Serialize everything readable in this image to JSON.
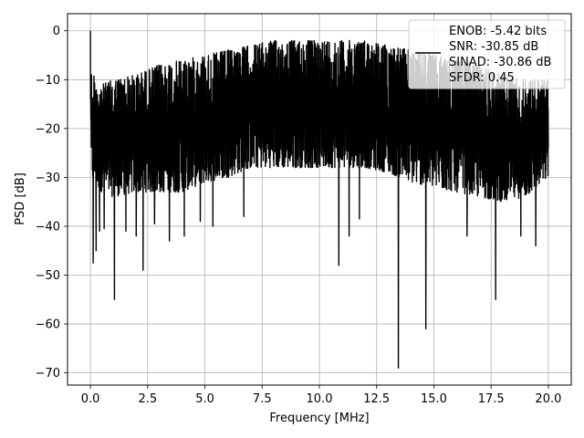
{
  "chart_data": {
    "type": "line",
    "title": "",
    "xlabel": "Frequency [MHz]",
    "ylabel": "PSD [dB]",
    "xlim": [
      -1.0,
      21.0
    ],
    "ylim": [
      -72.5,
      3.5
    ],
    "xticks": [
      0.0,
      2.5,
      5.0,
      7.5,
      10.0,
      12.5,
      15.0,
      17.5,
      20.0
    ],
    "xtick_labels": [
      "0.0",
      "2.5",
      "5.0",
      "7.5",
      "10.0",
      "12.5",
      "15.0",
      "17.5",
      "20.0"
    ],
    "yticks": [
      0,
      -10,
      -20,
      -30,
      -40,
      -50,
      -60,
      -70
    ],
    "ytick_labels": [
      "0",
      "−10",
      "−20",
      "−30",
      "−40",
      "−50",
      "−60",
      "−70"
    ],
    "grid": true,
    "legend": {
      "location": "upper right",
      "entries": [
        "ENOB: -5.42 bits",
        "SNR: -30.85 dB",
        "SINAD: -30.86 dB",
        "SFDR: 0.45"
      ]
    },
    "series": [
      {
        "color": "#000000",
        "x_range": [
          0.0,
          20.0
        ],
        "peak": {
          "x": 0.0,
          "y": 0.0
        },
        "envelope": {
          "x": [
            0.0,
            0.5,
            1.0,
            2.0,
            3.0,
            4.0,
            5.0,
            6.0,
            7.0,
            8.0,
            9.0,
            10.0,
            11.0,
            12.0,
            13.0,
            14.0,
            15.0,
            16.0,
            17.0,
            18.0,
            19.0,
            20.0
          ],
          "upper": [
            -8,
            -11,
            -10,
            -9,
            -7,
            -6,
            -5,
            -4,
            -3,
            -2,
            -2,
            -2,
            -2,
            -2,
            -3,
            -4,
            -5,
            -6,
            -7,
            -9,
            -10,
            -10
          ],
          "lower": [
            -30,
            -33,
            -34,
            -33,
            -33,
            -33,
            -31,
            -30,
            -28,
            -28,
            -28,
            -28,
            -28,
            -28,
            -29,
            -31,
            -32,
            -33,
            -34,
            -35,
            -34,
            -30
          ]
        },
        "dips": [
          {
            "x": 0.12,
            "y": -47.5
          },
          {
            "x": 0.25,
            "y": -45.0
          },
          {
            "x": 0.4,
            "y": -41.0
          },
          {
            "x": 0.6,
            "y": -40.5
          },
          {
            "x": 1.05,
            "y": -55.0
          },
          {
            "x": 1.55,
            "y": -41.0
          },
          {
            "x": 2.0,
            "y": -42.0
          },
          {
            "x": 2.3,
            "y": -49.0
          },
          {
            "x": 2.8,
            "y": -39.5
          },
          {
            "x": 3.45,
            "y": -43.0
          },
          {
            "x": 4.1,
            "y": -42.0
          },
          {
            "x": 4.8,
            "y": -39.0
          },
          {
            "x": 5.35,
            "y": -40.0
          },
          {
            "x": 6.7,
            "y": -38.0
          },
          {
            "x": 10.85,
            "y": -48.0
          },
          {
            "x": 11.3,
            "y": -42.0
          },
          {
            "x": 11.75,
            "y": -38.5
          },
          {
            "x": 13.45,
            "y": -69.0
          },
          {
            "x": 14.65,
            "y": -61.0
          },
          {
            "x": 16.45,
            "y": -42.0
          },
          {
            "x": 17.7,
            "y": -55.0
          },
          {
            "x": 18.8,
            "y": -42.0
          },
          {
            "x": 19.45,
            "y": -44.0
          }
        ]
      }
    ]
  }
}
